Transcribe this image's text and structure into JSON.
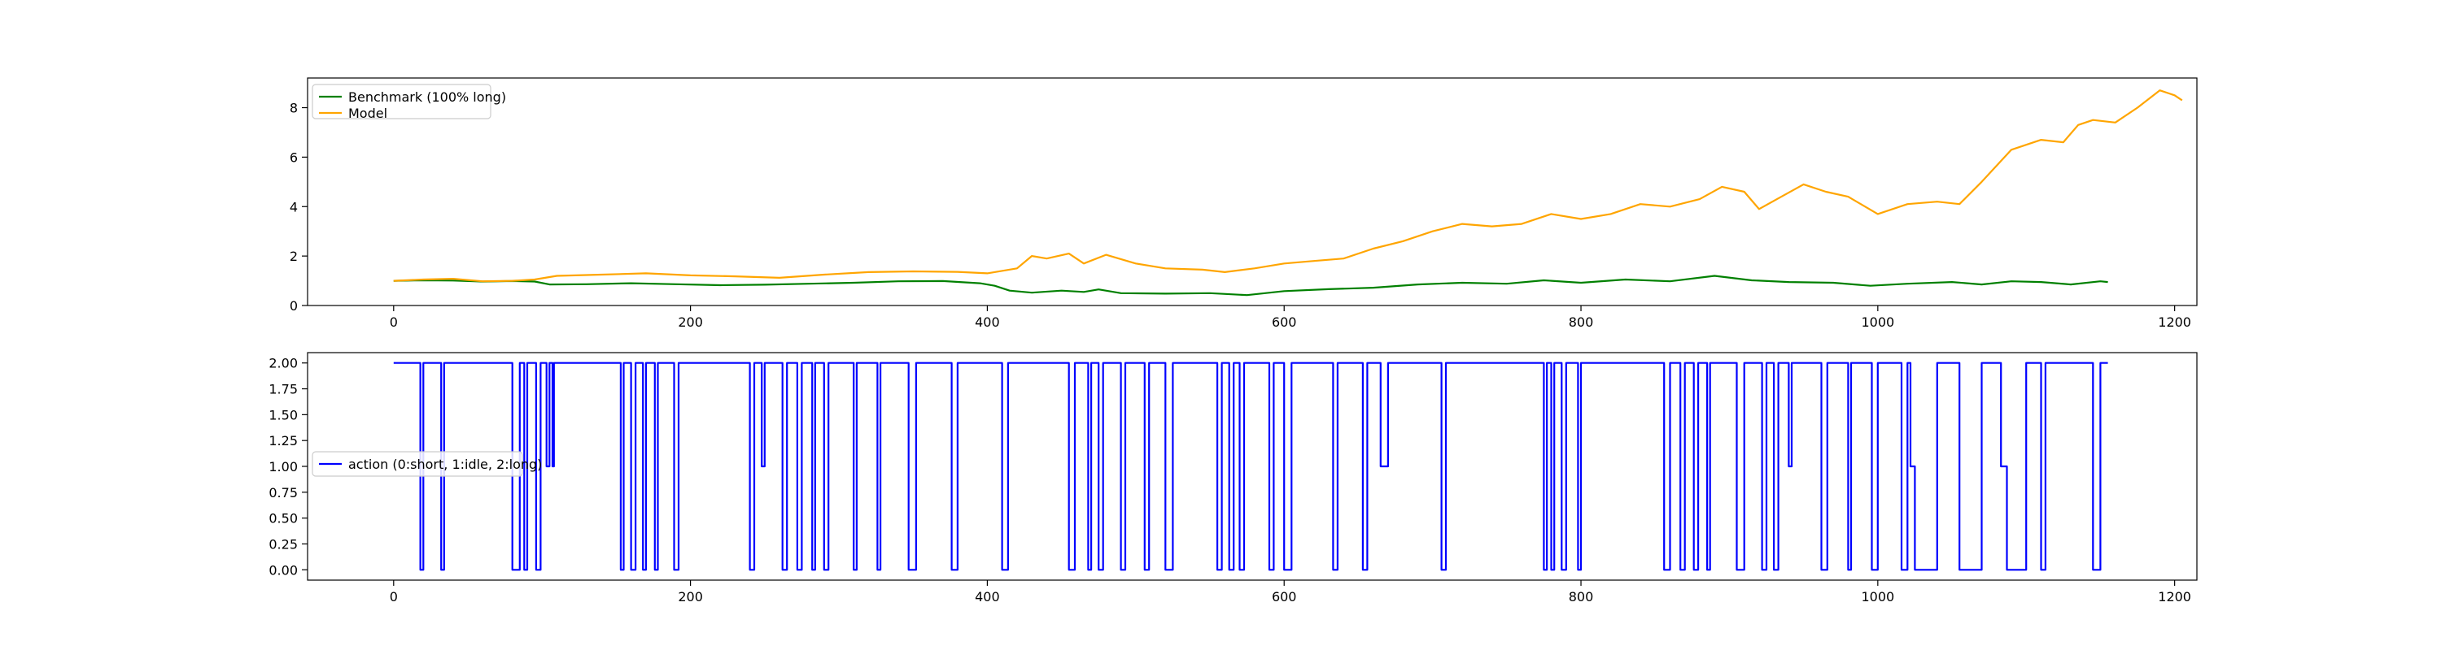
{
  "chart_data": [
    {
      "type": "line",
      "xlim": [
        -58,
        1215
      ],
      "ylim": [
        0,
        9.2
      ],
      "x_ticks": [
        0,
        200,
        400,
        600,
        800,
        1000,
        1200
      ],
      "x_tick_labels": [
        "0",
        "200",
        "400",
        "600",
        "800",
        "1000",
        "1200"
      ],
      "y_ticks": [
        0,
        2,
        4,
        6,
        8
      ],
      "y_tick_labels": [
        "0",
        "2",
        "4",
        "6",
        "8"
      ],
      "legend_position": "upper-left",
      "grid": false,
      "series": [
        {
          "name": "Benchmark (100% long)",
          "color": "#008000",
          "points": [
            [
              0,
              1.0
            ],
            [
              20,
              1.02
            ],
            [
              40,
              1.01
            ],
            [
              60,
              0.97
            ],
            [
              80,
              0.99
            ],
            [
              95,
              0.97
            ],
            [
              105,
              0.85
            ],
            [
              130,
              0.86
            ],
            [
              160,
              0.9
            ],
            [
              190,
              0.86
            ],
            [
              220,
              0.82
            ],
            [
              250,
              0.84
            ],
            [
              280,
              0.88
            ],
            [
              310,
              0.92
            ],
            [
              340,
              0.98
            ],
            [
              370,
              0.99
            ],
            [
              395,
              0.9
            ],
            [
              405,
              0.8
            ],
            [
              415,
              0.6
            ],
            [
              430,
              0.52
            ],
            [
              450,
              0.6
            ],
            [
              465,
              0.55
            ],
            [
              475,
              0.65
            ],
            [
              490,
              0.5
            ],
            [
              520,
              0.48
            ],
            [
              550,
              0.5
            ],
            [
              575,
              0.42
            ],
            [
              600,
              0.58
            ],
            [
              630,
              0.66
            ],
            [
              660,
              0.72
            ],
            [
              690,
              0.85
            ],
            [
              720,
              0.92
            ],
            [
              750,
              0.88
            ],
            [
              775,
              1.02
            ],
            [
              800,
              0.92
            ],
            [
              830,
              1.05
            ],
            [
              860,
              0.98
            ],
            [
              890,
              1.2
            ],
            [
              915,
              1.02
            ],
            [
              940,
              0.95
            ],
            [
              970,
              0.92
            ],
            [
              995,
              0.8
            ],
            [
              1020,
              0.88
            ],
            [
              1050,
              0.95
            ],
            [
              1070,
              0.85
            ],
            [
              1090,
              0.98
            ],
            [
              1110,
              0.95
            ],
            [
              1130,
              0.85
            ],
            [
              1150,
              0.98
            ],
            [
              1155,
              0.95
            ]
          ]
        },
        {
          "name": "Model",
          "color": "#FFA500",
          "points": [
            [
              0,
              1.0
            ],
            [
              20,
              1.05
            ],
            [
              40,
              1.08
            ],
            [
              60,
              0.98
            ],
            [
              80,
              1.0
            ],
            [
              95,
              1.05
            ],
            [
              110,
              1.2
            ],
            [
              140,
              1.25
            ],
            [
              170,
              1.3
            ],
            [
              200,
              1.22
            ],
            [
              230,
              1.18
            ],
            [
              260,
              1.12
            ],
            [
              290,
              1.25
            ],
            [
              320,
              1.35
            ],
            [
              350,
              1.38
            ],
            [
              380,
              1.36
            ],
            [
              400,
              1.3
            ],
            [
              420,
              1.5
            ],
            [
              430,
              2.0
            ],
            [
              440,
              1.9
            ],
            [
              455,
              2.1
            ],
            [
              465,
              1.7
            ],
            [
              480,
              2.05
            ],
            [
              500,
              1.7
            ],
            [
              520,
              1.5
            ],
            [
              545,
              1.45
            ],
            [
              560,
              1.35
            ],
            [
              580,
              1.5
            ],
            [
              600,
              1.7
            ],
            [
              620,
              1.8
            ],
            [
              640,
              1.9
            ],
            [
              660,
              2.3
            ],
            [
              680,
              2.6
            ],
            [
              700,
              3.0
            ],
            [
              720,
              3.3
            ],
            [
              740,
              3.2
            ],
            [
              760,
              3.3
            ],
            [
              780,
              3.7
            ],
            [
              800,
              3.5
            ],
            [
              820,
              3.7
            ],
            [
              840,
              4.1
            ],
            [
              860,
              4.0
            ],
            [
              880,
              4.3
            ],
            [
              895,
              4.8
            ],
            [
              910,
              4.6
            ],
            [
              920,
              3.9
            ],
            [
              935,
              4.4
            ],
            [
              950,
              4.9
            ],
            [
              965,
              4.6
            ],
            [
              980,
              4.4
            ],
            [
              1000,
              3.7
            ],
            [
              1020,
              4.1
            ],
            [
              1040,
              4.2
            ],
            [
              1055,
              4.1
            ],
            [
              1070,
              5.0
            ],
            [
              1090,
              6.3
            ],
            [
              1110,
              6.7
            ],
            [
              1125,
              6.6
            ],
            [
              1135,
              7.3
            ],
            [
              1145,
              7.5
            ],
            [
              1160,
              7.4
            ],
            [
              1175,
              8.0
            ],
            [
              1190,
              8.7
            ],
            [
              1200,
              8.5
            ],
            [
              1205,
              8.3
            ]
          ]
        }
      ]
    },
    {
      "type": "line",
      "xlim": [
        -58,
        1215
      ],
      "ylim": [
        -0.1,
        2.1
      ],
      "x_ticks": [
        0,
        200,
        400,
        600,
        800,
        1000,
        1200
      ],
      "x_tick_labels": [
        "0",
        "200",
        "400",
        "600",
        "800",
        "1000",
        "1200"
      ],
      "y_ticks": [
        0,
        0.25,
        0.5,
        0.75,
        1.0,
        1.25,
        1.5,
        1.75,
        2.0
      ],
      "y_tick_labels": [
        "0.00",
        "0.25",
        "0.50",
        "0.75",
        "1.00",
        "1.25",
        "1.50",
        "1.75",
        "2.00"
      ],
      "legend_position": "center-left",
      "grid": false,
      "series": [
        {
          "name": "action (0:short, 1:idle, 2:long)",
          "color": "#0000FF",
          "step_segments": [
            [
              0,
              2
            ],
            [
              18,
              0
            ],
            [
              20,
              2
            ],
            [
              32,
              0
            ],
            [
              34,
              2
            ],
            [
              80,
              0
            ],
            [
              85,
              2
            ],
            [
              88,
              0
            ],
            [
              90,
              2
            ],
            [
              96,
              0
            ],
            [
              99,
              2
            ],
            [
              103,
              1
            ],
            [
              105,
              2
            ],
            [
              107,
              1
            ],
            [
              108,
              2
            ],
            [
              153,
              0
            ],
            [
              155,
              2
            ],
            [
              160,
              0
            ],
            [
              163,
              2
            ],
            [
              168,
              0
            ],
            [
              170,
              2
            ],
            [
              176,
              0
            ],
            [
              178,
              2
            ],
            [
              189,
              0
            ],
            [
              192,
              2
            ],
            [
              240,
              0
            ],
            [
              243,
              2
            ],
            [
              248,
              1
            ],
            [
              250,
              2
            ],
            [
              262,
              0
            ],
            [
              265,
              2
            ],
            [
              272,
              0
            ],
            [
              275,
              2
            ],
            [
              282,
              0
            ],
            [
              284,
              2
            ],
            [
              290,
              0
            ],
            [
              293,
              2
            ],
            [
              310,
              0
            ],
            [
              312,
              2
            ],
            [
              326,
              0
            ],
            [
              328,
              2
            ],
            [
              347,
              0
            ],
            [
              352,
              2
            ],
            [
              376,
              0
            ],
            [
              380,
              2
            ],
            [
              410,
              0
            ],
            [
              414,
              2
            ],
            [
              455,
              0
            ],
            [
              459,
              2
            ],
            [
              468,
              0
            ],
            [
              470,
              2
            ],
            [
              475,
              0
            ],
            [
              478,
              2
            ],
            [
              490,
              0
            ],
            [
              493,
              2
            ],
            [
              506,
              0
            ],
            [
              509,
              2
            ],
            [
              520,
              0
            ],
            [
              525,
              2
            ],
            [
              555,
              0
            ],
            [
              558,
              2
            ],
            [
              563,
              0
            ],
            [
              566,
              2
            ],
            [
              570,
              0
            ],
            [
              573,
              2
            ],
            [
              590,
              0
            ],
            [
              593,
              2
            ],
            [
              600,
              0
            ],
            [
              605,
              2
            ],
            [
              633,
              0
            ],
            [
              636,
              2
            ],
            [
              653,
              0
            ],
            [
              656,
              2
            ],
            [
              665,
              1
            ],
            [
              670,
              2
            ],
            [
              706,
              0
            ],
            [
              709,
              2
            ],
            [
              775,
              0
            ],
            [
              777,
              2
            ],
            [
              780,
              0
            ],
            [
              782,
              2
            ],
            [
              787,
              0
            ],
            [
              790,
              2
            ],
            [
              798,
              0
            ],
            [
              800,
              2
            ],
            [
              856,
              0
            ],
            [
              860,
              2
            ],
            [
              867,
              0
            ],
            [
              870,
              2
            ],
            [
              876,
              0
            ],
            [
              879,
              2
            ],
            [
              885,
              0
            ],
            [
              887,
              2
            ],
            [
              905,
              0
            ],
            [
              910,
              2
            ],
            [
              922,
              0
            ],
            [
              925,
              2
            ],
            [
              930,
              0
            ],
            [
              933,
              2
            ],
            [
              940,
              1
            ],
            [
              942,
              2
            ],
            [
              962,
              0
            ],
            [
              966,
              2
            ],
            [
              980,
              0
            ],
            [
              982,
              2
            ],
            [
              996,
              0
            ],
            [
              1000,
              2
            ],
            [
              1016,
              0
            ],
            [
              1020,
              2
            ],
            [
              1022,
              1
            ],
            [
              1025,
              0
            ],
            [
              1040,
              2
            ],
            [
              1055,
              0
            ],
            [
              1070,
              2
            ],
            [
              1083,
              1
            ],
            [
              1087,
              0
            ],
            [
              1100,
              2
            ],
            [
              1110,
              0
            ],
            [
              1113,
              2
            ],
            [
              1145,
              0
            ],
            [
              1150,
              2
            ],
            [
              1155,
              2
            ]
          ]
        }
      ]
    }
  ]
}
